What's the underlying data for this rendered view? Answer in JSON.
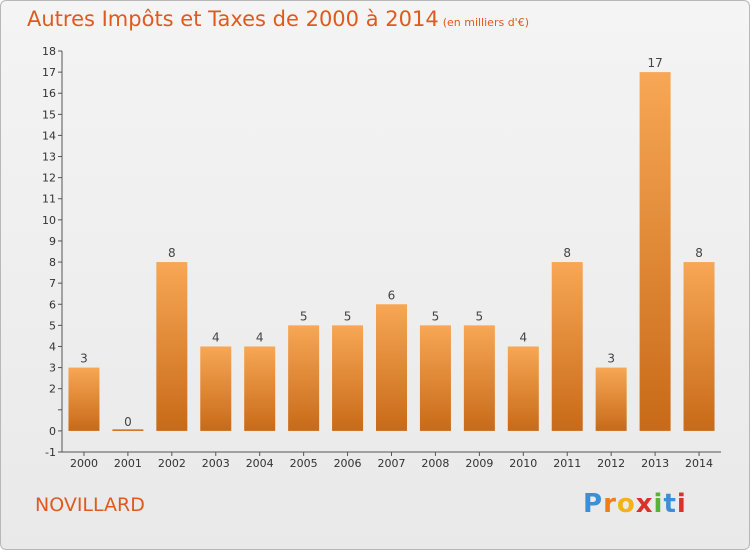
{
  "title": "Autres Impôts et Taxes de 2000 à 2014",
  "subtitle": "(en milliers d'€)",
  "town": "NOVILLARD",
  "logo": {
    "letters": [
      "P",
      "r",
      "o",
      "x",
      "i",
      "t",
      "i"
    ],
    "colors": [
      "#3a8fd6",
      "#f07d1b",
      "#f2b21a",
      "#d9322b",
      "#58b23a",
      "#3a8fd6",
      "#d9322b"
    ]
  },
  "colors": {
    "bar_top": "#f7a755",
    "bar_bottom": "#c86a18",
    "accent": "#e05a1e"
  },
  "chart_data": {
    "type": "bar",
    "categories": [
      "2000",
      "2001",
      "2002",
      "2003",
      "2004",
      "2005",
      "2006",
      "2007",
      "2008",
      "2009",
      "2010",
      "2011",
      "2012",
      "2013",
      "2014"
    ],
    "values": [
      3,
      0,
      8,
      4,
      4,
      5,
      5,
      6,
      5,
      5,
      4,
      8,
      3,
      17,
      8
    ],
    "ylim": [
      -1,
      18
    ],
    "yticks": [
      -1,
      0,
      1,
      2,
      3,
      4,
      5,
      6,
      7,
      8,
      9,
      10,
      11,
      12,
      13,
      14,
      15,
      16,
      17,
      18
    ],
    "ytick_labels": [
      "-1",
      "0",
      "",
      "2",
      "3",
      "4",
      "5",
      "6",
      "7",
      "8",
      "9",
      "10",
      "11",
      "12",
      "13",
      "14",
      "15",
      "16",
      "17",
      "18"
    ],
    "title": "Autres Impôts et Taxes de 2000 à 2014",
    "xlabel": "",
    "ylabel": "",
    "grid": false,
    "legend": "none"
  }
}
